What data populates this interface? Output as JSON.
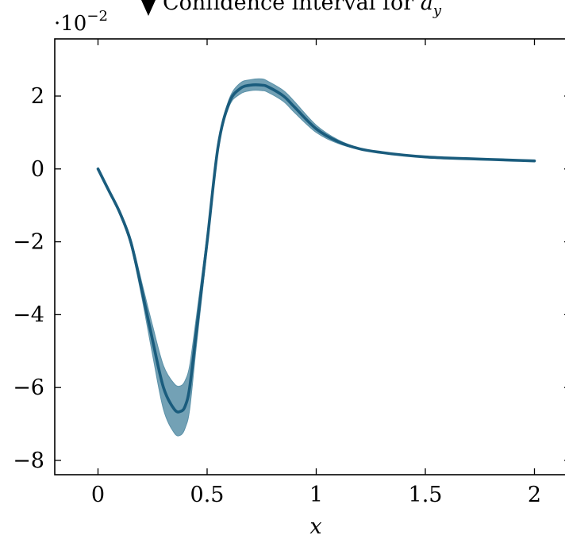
{
  "chart_data": {
    "type": "area",
    "title": "",
    "xlabel": "x",
    "ylabel": "",
    "xlim": [
      -0.2,
      2.15
    ],
    "ylim": [
      -0.084,
      0.035
    ],
    "y_scale_label": "·10",
    "y_scale_exponent": "−2",
    "x_ticks": [
      0,
      0.5,
      1,
      1.5,
      2
    ],
    "x_tick_labels": [
      "0",
      "0.5",
      "1",
      "1.5",
      "2"
    ],
    "y_ticks": [
      0.02,
      0,
      -0.02,
      -0.04,
      -0.06,
      -0.08
    ],
    "y_tick_labels": [
      "2",
      "0",
      "−2",
      "−4",
      "−6",
      "−8"
    ],
    "legend": {
      "placement": "top-center",
      "text": "Confidence interval for ",
      "math_symbol": "a",
      "math_subscript": "y"
    },
    "colors": {
      "line": "#1a5c7d",
      "band": "#5b91a8"
    },
    "series": [
      {
        "kind": "mean-with-band",
        "x": [
          0.0,
          0.05,
          0.1,
          0.15,
          0.2,
          0.25,
          0.3,
          0.35,
          0.38,
          0.4,
          0.42,
          0.45,
          0.5,
          0.55,
          0.6,
          0.65,
          0.7,
          0.75,
          0.78,
          0.85,
          0.9,
          1.0,
          1.1,
          1.2,
          1.3,
          1.4,
          1.5,
          1.6,
          1.7,
          1.8,
          1.9,
          2.0
        ],
        "y": [
          0.0,
          -0.006,
          -0.012,
          -0.02,
          -0.033,
          -0.047,
          -0.06,
          -0.066,
          -0.0665,
          -0.065,
          -0.06,
          -0.045,
          -0.02,
          0.006,
          0.018,
          0.022,
          0.023,
          0.023,
          0.0225,
          0.02,
          0.017,
          0.011,
          0.0075,
          0.0055,
          0.0045,
          0.0038,
          0.0033,
          0.003,
          0.0028,
          0.0026,
          0.0024,
          0.0022
        ],
        "lower": [
          0.0,
          -0.0062,
          -0.0125,
          -0.021,
          -0.035,
          -0.051,
          -0.066,
          -0.0725,
          -0.073,
          -0.071,
          -0.066,
          -0.049,
          -0.022,
          0.005,
          0.017,
          0.0205,
          0.0215,
          0.0215,
          0.021,
          0.0185,
          0.0155,
          0.01,
          0.007,
          0.0053,
          0.0044,
          0.0038,
          0.0033,
          0.003,
          0.0028,
          0.0026,
          0.0024,
          0.0022
        ],
        "upper": [
          0.0,
          -0.0058,
          -0.0115,
          -0.019,
          -0.031,
          -0.043,
          -0.054,
          -0.059,
          -0.0595,
          -0.058,
          -0.054,
          -0.041,
          -0.018,
          0.007,
          0.019,
          0.0235,
          0.0245,
          0.0247,
          0.024,
          0.0215,
          0.0185,
          0.012,
          0.008,
          0.0057,
          0.0046,
          0.0039,
          0.0034,
          0.0031,
          0.0028,
          0.0026,
          0.0024,
          0.0022
        ]
      }
    ]
  }
}
